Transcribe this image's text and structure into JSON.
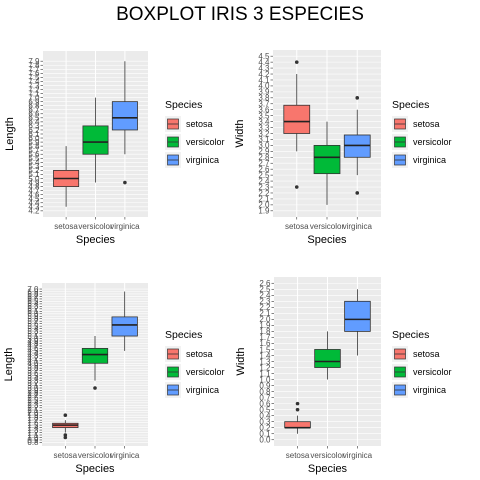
{
  "title": "BOXPLOT IRIS 3 ESPECIES",
  "colors": {
    "setosa": "#F8766D",
    "versicolor": "#00BA38",
    "virginica": "#619CFF"
  },
  "chart_data": [
    {
      "type": "boxplot",
      "xlabel": "Species",
      "ylabel": "Length",
      "ylim": [
        4.2,
        8.0
      ],
      "yticks": [
        "4.2",
        "4.3",
        "4.4",
        "4.5",
        "4.6",
        "4.7",
        "4.8",
        "4.9",
        "5.0",
        "5.1",
        "5.2",
        "5.3",
        "5.4",
        "5.5",
        "5.6",
        "5.7",
        "5.8",
        "5.9",
        "6.0",
        "6.1",
        "6.2",
        "6.3",
        "6.4",
        "6.5",
        "6.6",
        "6.7",
        "6.8",
        "6.9",
        "7.0",
        "7.1",
        "7.2",
        "7.3",
        "7.4",
        "7.5",
        "7.6",
        "7.7",
        "7.8",
        "7.9"
      ],
      "categories": [
        "setosa",
        "versicolor",
        "virginica"
      ],
      "boxes": [
        {
          "min": 4.3,
          "q1": 4.8,
          "median": 5.0,
          "q3": 5.2,
          "max": 5.8,
          "outliers": []
        },
        {
          "min": 4.9,
          "q1": 5.6,
          "median": 5.9,
          "q3": 6.3,
          "max": 7.0,
          "outliers": []
        },
        {
          "min": 5.6,
          "q1": 6.2,
          "median": 6.5,
          "q3": 6.9,
          "max": 7.9,
          "outliers": [
            4.9
          ]
        }
      ],
      "legend_title": "Species",
      "legend_position": "right"
    },
    {
      "type": "boxplot",
      "xlabel": "Species",
      "ylabel": "Width",
      "ylim": [
        1.9,
        4.5
      ],
      "yticks": [
        "1.9",
        "2.0",
        "2.1",
        "2.2",
        "2.3",
        "2.4",
        "2.5",
        "2.6",
        "2.7",
        "2.8",
        "2.9",
        "3.0",
        "3.1",
        "3.2",
        "3.3",
        "3.4",
        "3.5",
        "3.6",
        "3.7",
        "3.8",
        "3.9",
        "4.0",
        "4.1",
        "4.2",
        "4.3",
        "4.4",
        "4.5"
      ],
      "categories": [
        "setosa",
        "versicolor",
        "virginica"
      ],
      "boxes": [
        {
          "min": 2.9,
          "q1": 3.2,
          "median": 3.4,
          "q3": 3.675,
          "max": 4.2,
          "outliers": [
            2.3,
            4.4
          ]
        },
        {
          "min": 2.0,
          "q1": 2.525,
          "median": 2.8,
          "q3": 3.0,
          "max": 3.4,
          "outliers": []
        },
        {
          "min": 2.5,
          "q1": 2.8,
          "median": 3.0,
          "q3": 3.175,
          "max": 3.6,
          "outliers": [
            2.2,
            3.8
          ]
        }
      ],
      "legend_title": "Species",
      "legend_position": "right"
    },
    {
      "type": "boxplot",
      "xlabel": "Species",
      "ylabel": "Length",
      "ylim": [
        0.9,
        7.0
      ],
      "yticks": [
        "0.8",
        "0.9",
        "1.0",
        "1.1",
        "1.2",
        "1.3",
        "1.4",
        "1.5",
        "1.6",
        "1.7",
        "1.8",
        "1.9",
        "2.0",
        "2.1",
        "2.2",
        "2.3",
        "2.4",
        "2.5",
        "2.6",
        "2.7",
        "2.8",
        "2.9",
        "3.0",
        "3.1",
        "3.2",
        "3.3",
        "3.4",
        "3.5",
        "3.6",
        "3.7",
        "3.8",
        "3.9",
        "4.0",
        "4.1",
        "4.2",
        "4.3",
        "4.4",
        "4.5",
        "4.6",
        "4.7",
        "4.8",
        "4.9",
        "5.0",
        "5.1",
        "5.2",
        "5.3",
        "5.4",
        "5.5",
        "5.6",
        "5.7",
        "5.8",
        "5.9",
        "6.0",
        "6.1",
        "6.2",
        "6.3",
        "6.4",
        "6.5",
        "6.6",
        "6.7",
        "6.8",
        "6.9",
        "7.0"
      ],
      "categories": [
        "setosa",
        "versicolor",
        "virginica"
      ],
      "boxes": [
        {
          "min": 1.2,
          "q1": 1.4,
          "median": 1.5,
          "q3": 1.575,
          "max": 1.7,
          "outliers": [
            1.0,
            1.1,
            1.9
          ]
        },
        {
          "min": 3.3,
          "q1": 4.0,
          "median": 4.35,
          "q3": 4.6,
          "max": 5.1,
          "outliers": [
            3.0
          ]
        },
        {
          "min": 4.5,
          "q1": 5.1,
          "median": 5.55,
          "q3": 5.875,
          "max": 6.9,
          "outliers": []
        }
      ],
      "legend_title": "Species",
      "legend_position": "right"
    },
    {
      "type": "boxplot",
      "xlabel": "Species",
      "ylabel": "Width",
      "ylim": [
        0.0,
        2.6
      ],
      "yticks": [
        "0.0",
        "0.1",
        "0.2",
        "0.3",
        "0.4",
        "0.5",
        "0.6",
        "0.7",
        "0.8",
        "0.9",
        "1.0",
        "1.1",
        "1.2",
        "1.3",
        "1.4",
        "1.5",
        "1.6",
        "1.7",
        "1.8",
        "1.9",
        "2.0",
        "2.1",
        "2.2",
        "2.3",
        "2.4",
        "2.5",
        "2.6"
      ],
      "categories": [
        "setosa",
        "versicolor",
        "virginica"
      ],
      "boxes": [
        {
          "min": 0.1,
          "q1": 0.2,
          "median": 0.2,
          "q3": 0.3,
          "max": 0.4,
          "outliers": [
            0.5,
            0.6
          ]
        },
        {
          "min": 1.0,
          "q1": 1.2,
          "median": 1.3,
          "q3": 1.5,
          "max": 1.8,
          "outliers": []
        },
        {
          "min": 1.4,
          "q1": 1.8,
          "median": 2.0,
          "q3": 2.3,
          "max": 2.5,
          "outliers": []
        }
      ],
      "legend_title": "Species",
      "legend_position": "right"
    }
  ]
}
